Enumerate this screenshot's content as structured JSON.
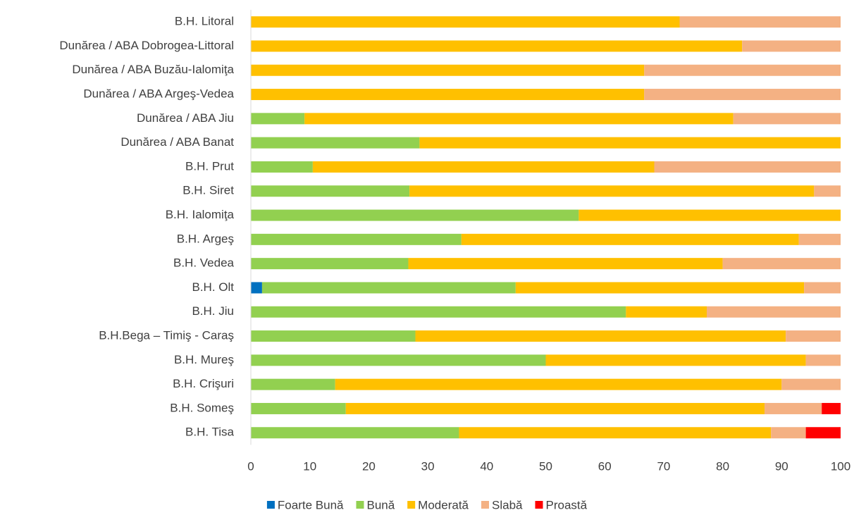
{
  "chart_data": {
    "type": "stacked-barh",
    "categories": [
      "B.H. Litoral",
      "Dunărea / ABA Dobrogea-Littoral",
      "Dunărea / ABA Buzău-Ialomiţa",
      "Dunărea / ABA Argeş-Vedea",
      "Dunărea / ABA Jiu",
      "Dunărea / ABA Banat",
      "B.H. Prut",
      "B.H. Siret",
      "B.H. Ialomiţa",
      "B.H. Argeş",
      "B.H. Vedea",
      "B.H. Olt",
      "B.H. Jiu",
      "B.H.Bega – Timiş - Caraş",
      "B.H. Mureş",
      "B.H. Crişuri",
      "B.H. Someş",
      "B.H. Tisa"
    ],
    "series": [
      {
        "name": "Foarte Bună",
        "color": "#0070c0",
        "values": [
          0,
          0,
          0,
          0,
          0,
          0,
          0,
          0,
          0,
          0,
          0,
          1.9,
          0,
          0,
          0,
          0,
          0,
          0
        ]
      },
      {
        "name": "Bună",
        "color": "#92d050",
        "values": [
          0,
          0,
          0,
          0,
          9.1,
          28.6,
          10.5,
          26.9,
          55.6,
          35.7,
          26.7,
          43,
          63.6,
          27.9,
          50,
          14.3,
          16.1,
          35.3
        ]
      },
      {
        "name": "Moderată",
        "color": "#ffc000",
        "values": [
          72.7,
          83.3,
          66.7,
          66.7,
          72.7,
          71.4,
          57.9,
          68.6,
          44.4,
          57.2,
          53.3,
          48.9,
          13.7,
          62.8,
          44.1,
          75.7,
          71,
          52.9
        ]
      },
      {
        "name": "Slabă",
        "color": "#f4b183",
        "values": [
          27.3,
          16.7,
          33.3,
          33.3,
          18.2,
          0,
          31.6,
          4.5,
          0,
          7.1,
          20,
          6.2,
          22.7,
          9.3,
          5.9,
          10,
          9.7,
          5.9
        ]
      },
      {
        "name": "Proastă",
        "color": "#ff0000",
        "values": [
          0,
          0,
          0,
          0,
          0,
          0,
          0,
          0,
          0,
          0,
          0,
          0,
          0,
          0,
          0,
          0,
          3.2,
          5.9
        ]
      }
    ],
    "xlim": [
      0,
      100
    ],
    "xticks": [
      0,
      10,
      20,
      30,
      40,
      50,
      60,
      70,
      80,
      90,
      100
    ],
    "legend": "bottom"
  }
}
